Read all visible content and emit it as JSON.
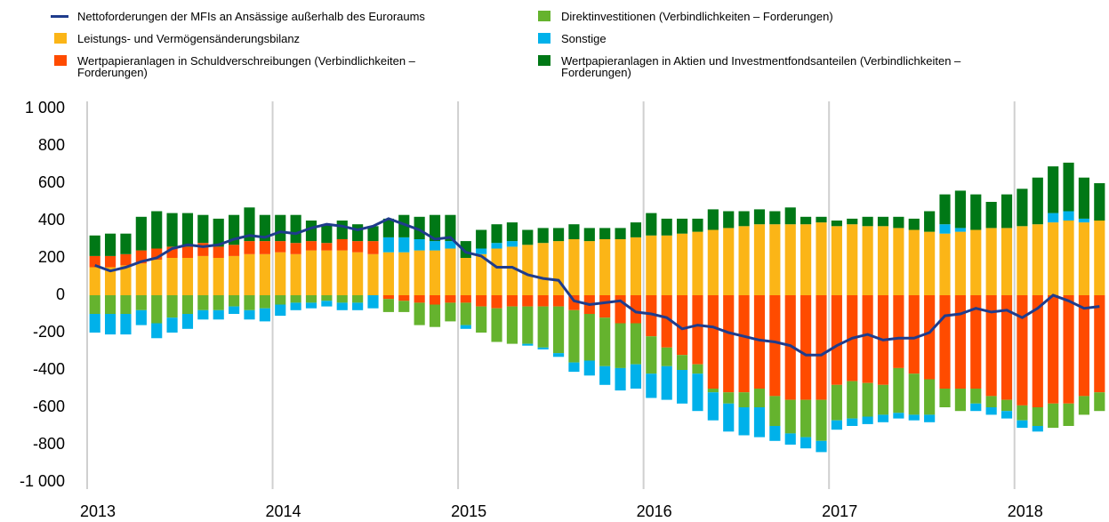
{
  "chart_data": {
    "type": "bar",
    "categories": [
      "2013",
      null,
      null,
      null,
      null,
      null,
      null,
      null,
      null,
      null,
      null,
      null,
      "2014",
      null,
      null,
      null,
      null,
      null,
      null,
      null,
      null,
      null,
      null,
      null,
      "2015",
      null,
      null,
      null,
      null,
      null,
      null,
      null,
      null,
      null,
      null,
      null,
      "2016",
      null,
      null,
      null,
      null,
      null,
      null,
      null,
      null,
      null,
      null,
      null,
      "2017",
      null,
      null,
      null,
      null,
      null,
      null,
      null,
      null,
      null,
      null,
      null,
      "2018",
      null,
      null,
      null,
      null,
      null
    ],
    "series": [
      {
        "name": "Nettoforderungen der MFIs an Ansässige außerhalb des Euroraums",
        "type": "line",
        "color": "#1f3c8c",
        "values": [
          160,
          130,
          150,
          180,
          200,
          250,
          270,
          260,
          270,
          300,
          320,
          310,
          340,
          330,
          360,
          380,
          370,
          350,
          370,
          410,
          380,
          350,
          300,
          310,
          230,
          210,
          150,
          150,
          110,
          90,
          80,
          -30,
          -50,
          -40,
          -30,
          -90,
          -100,
          -120,
          -180,
          -160,
          -170,
          -200,
          -220,
          -240,
          -250,
          -270,
          -320,
          -320,
          -270,
          -230,
          -210,
          -240,
          -230,
          -230,
          -200,
          -110,
          -100,
          -70,
          -90,
          -80,
          -120,
          -70,
          0,
          -30,
          -70,
          -60
        ]
      },
      {
        "name": "Leistungs- und Vermögensänderungsbilanz",
        "color": "#fbb517",
        "values": [
          150,
          150,
          160,
          170,
          190,
          200,
          200,
          210,
          200,
          210,
          220,
          220,
          230,
          220,
          240,
          240,
          240,
          230,
          220,
          230,
          230,
          240,
          240,
          250,
          200,
          220,
          250,
          260,
          270,
          280,
          290,
          300,
          290,
          300,
          300,
          310,
          320,
          320,
          330,
          340,
          350,
          360,
          370,
          380,
          380,
          380,
          380,
          390,
          370,
          380,
          370,
          370,
          360,
          350,
          340,
          330,
          340,
          350,
          360,
          360,
          370,
          380,
          390,
          400,
          390,
          400
        ]
      },
      {
        "name": "Wertpapieranlagen in Schuldverschreibungen (Verbindlichkeiten – Forderungen)",
        "color": "#ff4b00",
        "values": [
          60,
          60,
          60,
          70,
          60,
          60,
          60,
          70,
          60,
          60,
          70,
          70,
          60,
          60,
          50,
          40,
          60,
          60,
          70,
          -20,
          -30,
          -40,
          -50,
          -40,
          -40,
          -60,
          -70,
          -60,
          -60,
          -60,
          -60,
          -80,
          -100,
          -120,
          -150,
          -150,
          -220,
          -280,
          -320,
          -370,
          -500,
          -520,
          -520,
          -500,
          -540,
          -560,
          -560,
          -560,
          -480,
          -460,
          -470,
          -480,
          -390,
          -420,
          -450,
          -500,
          -500,
          -500,
          -540,
          -560,
          -590,
          -600,
          -580,
          -580,
          -540,
          -520
        ]
      },
      {
        "name": "Direktinvestitionen (Verbindlichkeiten – Forderungen)",
        "color": "#65b32e",
        "values": [
          -100,
          -100,
          -100,
          -80,
          -150,
          -120,
          -100,
          -80,
          -80,
          -60,
          -80,
          -70,
          -50,
          -40,
          -40,
          -30,
          -40,
          -40,
          0,
          -70,
          -60,
          -120,
          -120,
          -100,
          -120,
          -140,
          -180,
          -200,
          -200,
          -220,
          -250,
          -280,
          -250,
          -260,
          -240,
          -220,
          -200,
          -100,
          -80,
          -50,
          -20,
          -60,
          -80,
          -100,
          -160,
          -180,
          -200,
          -220,
          -190,
          -200,
          -180,
          -160,
          -240,
          -220,
          -190,
          -100,
          -120,
          -80,
          -60,
          -60,
          -80,
          -100,
          -130,
          -120,
          -100,
          -100
        ]
      },
      {
        "name": "Sonstige",
        "color": "#00b1ea",
        "values": [
          -100,
          -110,
          -110,
          -80,
          -80,
          -80,
          -80,
          -50,
          -50,
          -40,
          -50,
          -70,
          -60,
          -40,
          -30,
          -30,
          -40,
          -40,
          -70,
          80,
          80,
          60,
          50,
          40,
          -20,
          30,
          30,
          30,
          -10,
          -10,
          -20,
          -50,
          -80,
          -100,
          -120,
          -130,
          -130,
          -180,
          -180,
          -200,
          -150,
          -150,
          -150,
          -160,
          -80,
          -60,
          -60,
          -60,
          -50,
          -40,
          -40,
          -40,
          -30,
          -30,
          -40,
          50,
          20,
          -40,
          -40,
          -40,
          -40,
          -30,
          50,
          50,
          20,
          0
        ]
      },
      {
        "name": "Wertpapieranlagen in Aktien und Investmentfondsanteilen (Verbindlichkeiten – Forderungen)",
        "color": "#007816",
        "values": [
          110,
          120,
          110,
          180,
          200,
          180,
          180,
          150,
          150,
          160,
          180,
          140,
          140,
          150,
          110,
          100,
          100,
          90,
          80,
          100,
          120,
          120,
          140,
          140,
          90,
          100,
          100,
          100,
          80,
          80,
          70,
          80,
          70,
          60,
          60,
          80,
          120,
          90,
          80,
          70,
          110,
          90,
          80,
          80,
          70,
          90,
          40,
          30,
          30,
          30,
          50,
          50,
          60,
          60,
          110,
          160,
          200,
          190,
          140,
          180,
          200,
          250,
          250,
          260,
          220,
          200
        ]
      }
    ],
    "ylim": [
      -1000,
      1000
    ],
    "yticks": [
      {
        "value": -1000,
        "label": "-1 000"
      },
      -800,
      -600,
      -400,
      -200,
      0,
      200,
      400,
      600,
      800,
      {
        "value": 1000,
        "label": "1 000"
      }
    ],
    "grid": "x"
  }
}
